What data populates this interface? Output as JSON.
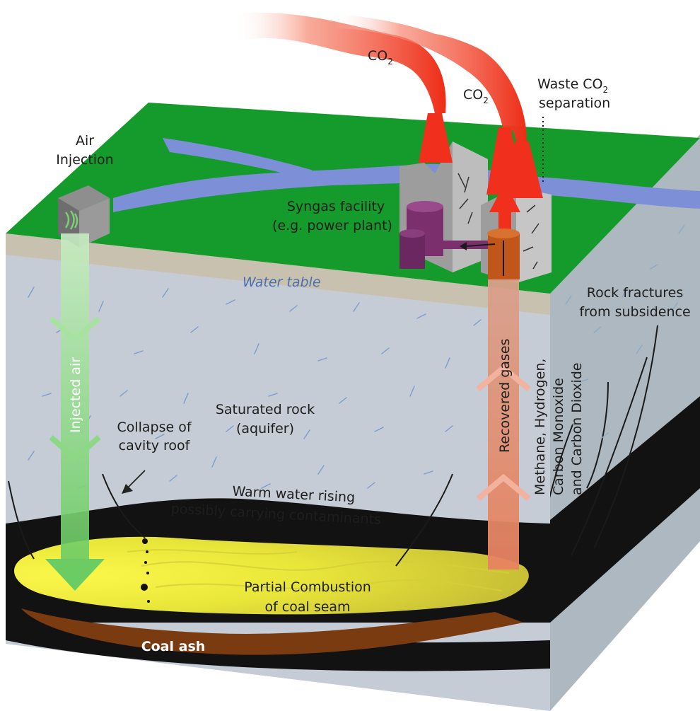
{
  "labels": {
    "co2_left": "CO",
    "co2_right": "CO",
    "co2_subscript": "2",
    "waste_co2_line1": "Waste CO",
    "waste_co2_line2": "separation",
    "air_injection_line1": "Air",
    "air_injection_line2": "Injection",
    "syngas_line1": "Syngas facility",
    "syngas_line2": "(e.g. power plant)",
    "water_table": "Water table",
    "rock_fractures_line1": "Rock fractures",
    "rock_fractures_line2": "from subsidence",
    "injected_air": "Injected air",
    "recovered_gases": "Recovered gases",
    "gases_line1": "Methane, Hydrogen,",
    "gases_line2": "Carbon Monoxide",
    "gases_line3": "and Carbon Dioxide",
    "saturated_line1": "Saturated rock",
    "saturated_line2": "(aquifer)",
    "collapse_line1": "Collapse of",
    "collapse_line2": "cavity roof",
    "warm_line1": "Warm water rising",
    "warm_line2": "possibly carrying contaminants",
    "partial_line1": "Partial Combustion",
    "partial_line2": "of coal seam",
    "coal_ash": "Coal ash"
  },
  "colors": {
    "surface_green": "#159a2c",
    "river_blue": "#7d8fd6",
    "soil_beige": "#c9c1b0",
    "aquifer_grey": "#c6ccd5",
    "right_face": "#aeb8c0",
    "coal_black": "#111111",
    "combustion_yellow": "#f0ec2a",
    "ash_brown": "#7a3b10",
    "smoke_red": "#f0301c",
    "injected_air_green": "#7fd27a",
    "recovered_gas_salmon": "#e08d72",
    "facility_grey": "#a5a5a5",
    "pipe_orange": "#c0561a",
    "tank_purple": "#7b2f6d"
  }
}
